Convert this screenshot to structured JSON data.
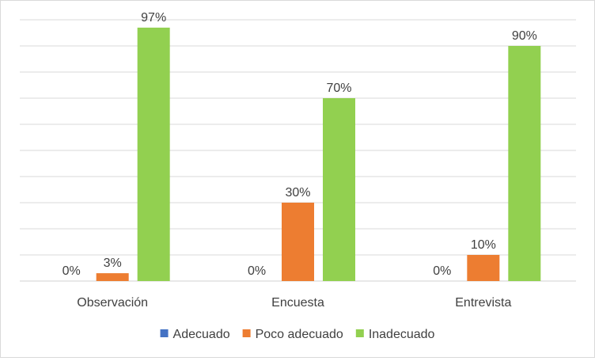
{
  "chart_data": {
    "type": "bar",
    "title": "",
    "xlabel": "",
    "ylabel": "",
    "categories": [
      "Observación",
      "Encuesta",
      "Entrevista"
    ],
    "series": [
      {
        "name": "Adecuado",
        "color": "#4472C4",
        "values": [
          0,
          0,
          0
        ],
        "labels": [
          "0%",
          "0%",
          "0%"
        ]
      },
      {
        "name": "Poco adecuado",
        "color": "#ED7D31",
        "values": [
          3,
          30,
          10
        ],
        "labels": [
          "3%",
          "30%",
          "10%"
        ]
      },
      {
        "name": "Inadecuado",
        "color": "#92D050",
        "values": [
          97,
          70,
          90
        ],
        "labels": [
          "97%",
          "70%",
          "90%"
        ]
      }
    ],
    "ylim": [
      0,
      100
    ],
    "grid": true,
    "legend": "bottom"
  }
}
